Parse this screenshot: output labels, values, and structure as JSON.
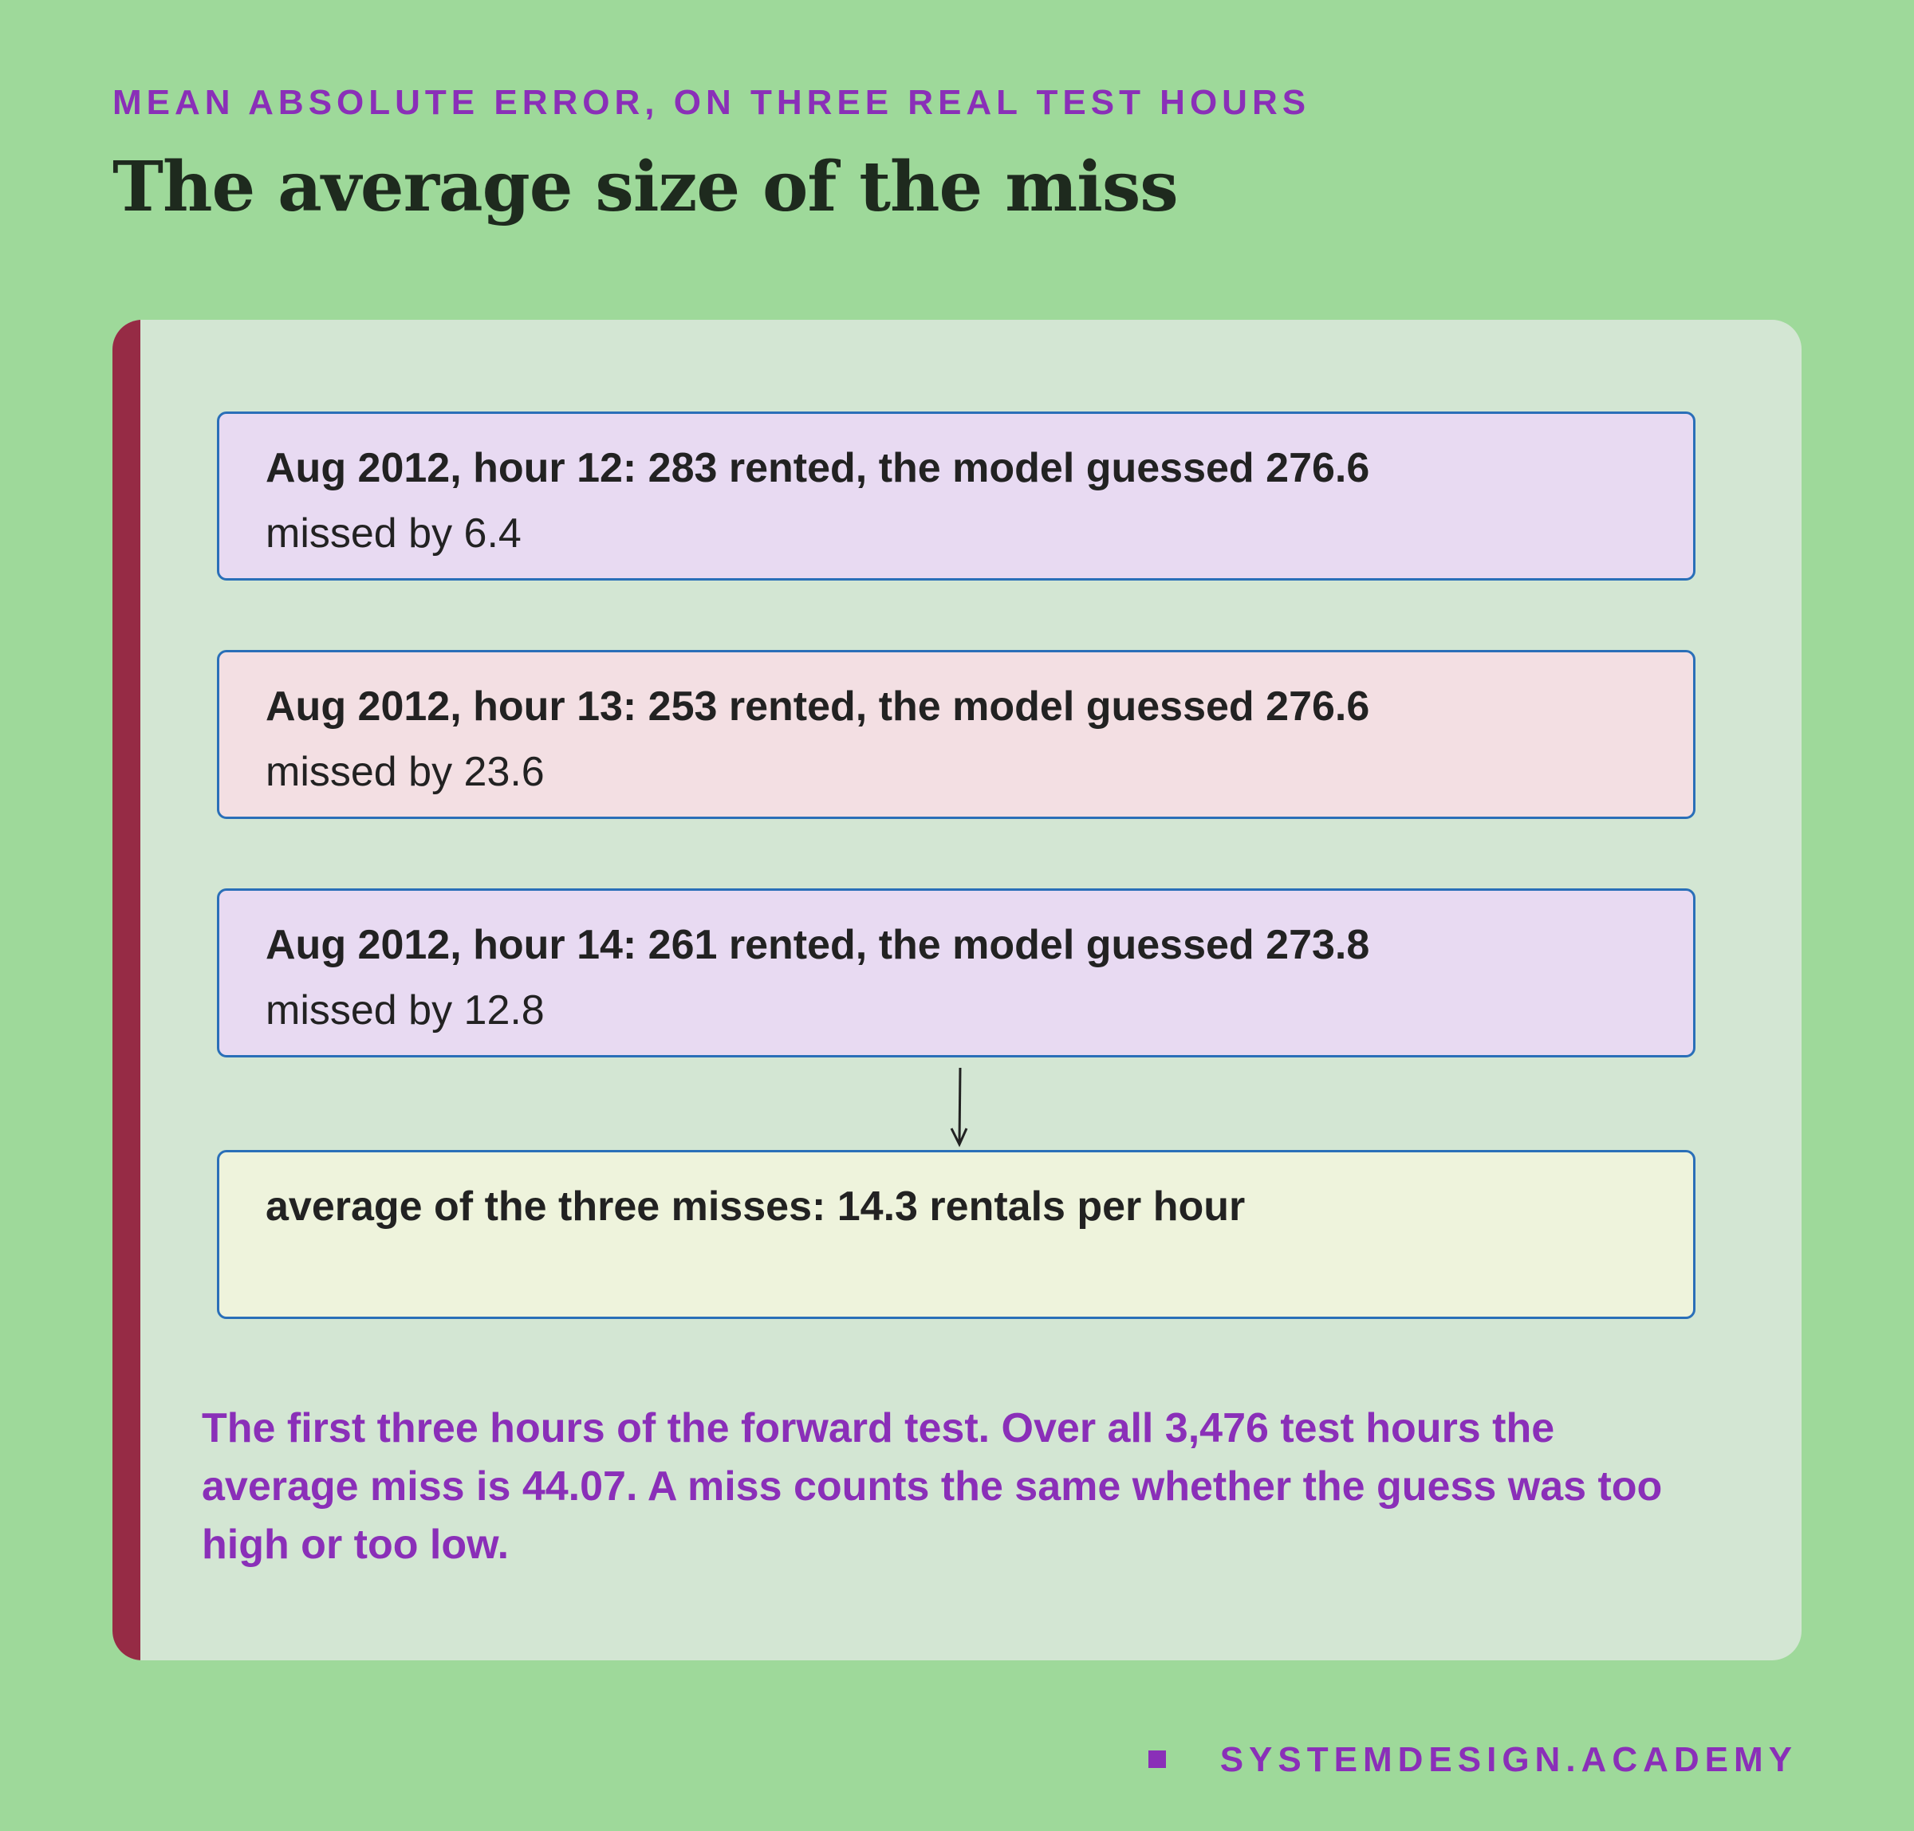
{
  "header": {
    "eyebrow": "MEAN ABSOLUTE ERROR, ON THREE REAL TEST HOURS",
    "title": "The average size of the miss"
  },
  "steps": [
    {
      "label": "Aug 2012, hour 12: 283 rented, the model guessed 276.6",
      "detail": "missed by 6.4"
    },
    {
      "label": "Aug 2012, hour 13: 253 rented, the model guessed 276.6",
      "detail": "missed by 23.6"
    },
    {
      "label": "Aug 2012, hour 14: 261 rented, the model guessed 273.8",
      "detail": "missed by 12.8"
    }
  ],
  "result": {
    "label": "average of the three misses: 14.3 rentals per hour"
  },
  "note": "The first three hours of the forward test. Over all 3,476 test hours the average miss is 44.07. A miss counts the same whether the guess was too high or too low.",
  "footer": {
    "brand": "SYSTEMDESIGN.ACADEMY"
  }
}
